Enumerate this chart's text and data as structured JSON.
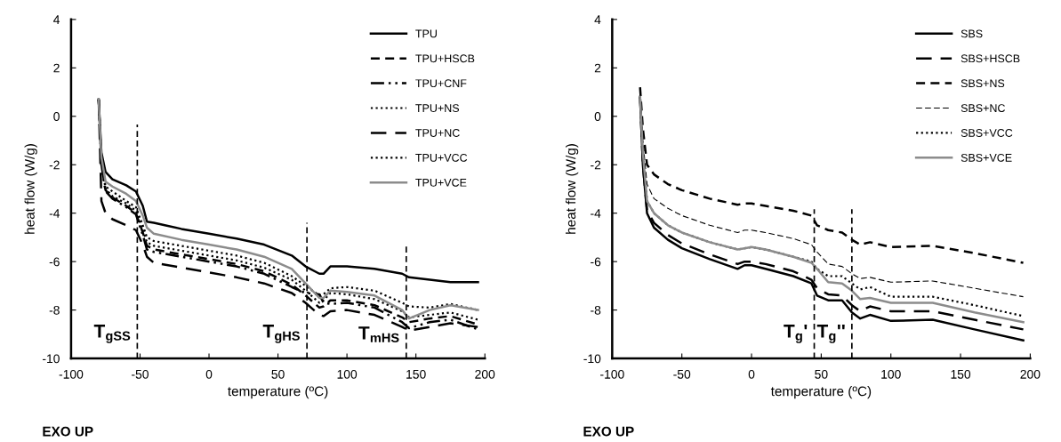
{
  "chart_data": [
    {
      "type": "line",
      "xlabel": "temperature (ºC)",
      "ylabel": "heat flow (W/g)",
      "xlim": [
        -100,
        200
      ],
      "ylim": [
        -10,
        4
      ],
      "xticks": [
        -100,
        -50,
        0,
        50,
        100,
        150,
        200
      ],
      "yticks": [
        -10,
        -8,
        -6,
        -4,
        -2,
        0,
        2,
        4
      ],
      "grid": false,
      "legend": "top right",
      "x": [
        -80,
        -78,
        -75,
        -70,
        -60,
        -53,
        -48,
        -45,
        -40,
        -20,
        0,
        20,
        40,
        60,
        70,
        80,
        83,
        88,
        100,
        120,
        140,
        145,
        160,
        175,
        195
      ],
      "series": [
        {
          "name": "TPU",
          "color": "#000000",
          "line_style": "solid",
          "values": [
            0.7,
            -1.5,
            -2.3,
            -2.6,
            -2.85,
            -3.1,
            -3.7,
            -4.35,
            -4.4,
            -4.65,
            -4.85,
            -5.05,
            -5.3,
            -5.75,
            -6.2,
            -6.5,
            -6.5,
            -6.2,
            -6.2,
            -6.3,
            -6.5,
            -6.65,
            -6.75,
            -6.85,
            -6.85
          ]
        },
        {
          "name": "TPU+HSCB",
          "color": "#000000",
          "line_style": "dashed",
          "values": [
            0.7,
            -2.0,
            -3.05,
            -3.35,
            -3.7,
            -4.0,
            -4.8,
            -5.35,
            -5.5,
            -5.7,
            -5.9,
            -6.1,
            -6.4,
            -6.95,
            -7.4,
            -7.9,
            -7.85,
            -7.6,
            -7.6,
            -7.8,
            -8.3,
            -8.5,
            -8.35,
            -8.25,
            -8.6
          ]
        },
        {
          "name": "TPU+CNF",
          "color": "#000000",
          "line_style": "dashdot",
          "values": [
            0.7,
            -2.0,
            -3.1,
            -3.4,
            -3.75,
            -4.05,
            -4.9,
            -5.5,
            -5.6,
            -5.8,
            -6.0,
            -6.2,
            -6.5,
            -7.05,
            -7.3,
            -7.35,
            -7.7,
            -7.75,
            -7.7,
            -7.9,
            -8.5,
            -8.75,
            -8.5,
            -8.4,
            -8.8
          ]
        },
        {
          "name": "TPU+NS",
          "color": "#000000",
          "line_style": "dotted",
          "values": [
            0.7,
            -1.8,
            -2.9,
            -3.1,
            -3.5,
            -3.75,
            -4.5,
            -5.0,
            -5.15,
            -5.35,
            -5.55,
            -5.75,
            -6.05,
            -6.6,
            -7.0,
            -7.4,
            -7.35,
            -7.1,
            -7.05,
            -7.2,
            -7.7,
            -7.85,
            -7.9,
            -7.75,
            -8.0
          ]
        },
        {
          "name": "TPU+NC",
          "color": "#000000",
          "line_style": "longdash",
          "values": [
            0.7,
            -3.5,
            -4.0,
            -4.25,
            -4.5,
            -4.7,
            -5.3,
            -5.8,
            -6.05,
            -6.25,
            -6.45,
            -6.65,
            -6.9,
            -7.3,
            -7.7,
            -8.2,
            -8.25,
            -8.05,
            -8.0,
            -8.2,
            -8.7,
            -8.85,
            -8.7,
            -8.55,
            -8.7
          ]
        },
        {
          "name": "TPU+VCC",
          "color": "#000000",
          "line_style": "dotted",
          "values": [
            0.7,
            -1.9,
            -3.0,
            -3.3,
            -3.6,
            -3.9,
            -4.7,
            -5.2,
            -5.35,
            -5.55,
            -5.75,
            -5.95,
            -6.25,
            -6.75,
            -7.2,
            -7.7,
            -7.6,
            -7.3,
            -7.35,
            -7.55,
            -8.05,
            -8.3,
            -8.2,
            -8.1,
            -8.4
          ]
        },
        {
          "name": "TPU+VCE",
          "color": "#8c8c8c",
          "line_style": "solid",
          "values": [
            0.7,
            -1.7,
            -2.7,
            -2.9,
            -3.2,
            -3.5,
            -4.1,
            -4.6,
            -4.85,
            -5.1,
            -5.3,
            -5.5,
            -5.8,
            -6.3,
            -6.9,
            -7.5,
            -7.5,
            -7.2,
            -7.25,
            -7.4,
            -8.0,
            -8.35,
            -8.0,
            -7.8,
            -8.0
          ]
        }
      ],
      "ref_lines": [
        {
          "axis": "x",
          "value": -52,
          "label": "T$_{gSS}$",
          "color": "#000000",
          "line_style": "dashed"
        },
        {
          "axis": "x",
          "value": 71,
          "label": "T$_{gHS}$",
          "color": "#000000",
          "line_style": "dashed"
        },
        {
          "axis": "x",
          "value": 143,
          "label": "T$_{mHS}$",
          "color": "#000000",
          "line_style": "dashed"
        }
      ],
      "annotations": [
        "EXO UP"
      ]
    },
    {
      "type": "line",
      "xlabel": "temperature (ºC)",
      "ylabel": "heat flow (W/g)",
      "xlim": [
        -100,
        200
      ],
      "ylim": [
        -10,
        4
      ],
      "xticks": [
        -100,
        -50,
        0,
        50,
        100,
        150,
        200
      ],
      "yticks": [
        -10,
        -8,
        -6,
        -4,
        -2,
        0,
        2,
        4
      ],
      "grid": false,
      "legend": "top right",
      "x": [
        -80,
        -78,
        -75,
        -70,
        -60,
        -50,
        -30,
        -10,
        -5,
        0,
        10,
        30,
        43,
        47,
        55,
        65,
        72,
        78,
        85,
        100,
        130,
        160,
        195
      ],
      "series": [
        {
          "name": "SBS",
          "color": "#000000",
          "line_style": "solid",
          "values": [
            0.8,
            -2.0,
            -4.0,
            -4.6,
            -5.1,
            -5.45,
            -5.9,
            -6.3,
            -6.15,
            -6.15,
            -6.3,
            -6.6,
            -6.9,
            -7.4,
            -7.6,
            -7.6,
            -8.1,
            -8.35,
            -8.2,
            -8.45,
            -8.4,
            -8.8,
            -9.25
          ]
        },
        {
          "name": "SBS+HSCB",
          "color": "#000000",
          "line_style": "longdash",
          "values": [
            0.8,
            -2.0,
            -3.9,
            -4.4,
            -4.9,
            -5.25,
            -5.7,
            -6.1,
            -6.0,
            -6.0,
            -6.1,
            -6.4,
            -6.75,
            -7.1,
            -7.35,
            -7.4,
            -7.8,
            -8.05,
            -7.85,
            -8.05,
            -8.05,
            -8.4,
            -8.8
          ]
        },
        {
          "name": "SBS+NS",
          "color": "#000000",
          "line_style": "dashed",
          "values": [
            1.2,
            -0.5,
            -2.0,
            -2.4,
            -2.8,
            -3.05,
            -3.4,
            -3.65,
            -3.6,
            -3.6,
            -3.7,
            -3.9,
            -4.1,
            -4.5,
            -4.7,
            -4.8,
            -5.1,
            -5.3,
            -5.2,
            -5.4,
            -5.35,
            -5.65,
            -6.05
          ]
        },
        {
          "name": "SBS+NC",
          "color": "#000000",
          "line_style": "thindash",
          "values": [
            1.0,
            -1.0,
            -2.8,
            -3.4,
            -3.8,
            -4.1,
            -4.5,
            -4.8,
            -4.7,
            -4.7,
            -4.8,
            -5.05,
            -5.3,
            -5.6,
            -6.1,
            -6.2,
            -6.5,
            -6.7,
            -6.65,
            -6.85,
            -6.8,
            -7.1,
            -7.45
          ]
        },
        {
          "name": "SBS+VCC",
          "color": "#000000",
          "line_style": "dotted",
          "values": [
            0.8,
            -1.5,
            -3.5,
            -4.0,
            -4.5,
            -4.8,
            -5.2,
            -5.5,
            -5.45,
            -5.4,
            -5.5,
            -5.8,
            -6.0,
            -6.3,
            -6.6,
            -6.6,
            -6.9,
            -7.15,
            -7.05,
            -7.45,
            -7.45,
            -7.8,
            -8.25
          ]
        },
        {
          "name": "SBS+VCE",
          "color": "#8c8c8c",
          "line_style": "solid",
          "values": [
            0.8,
            -1.5,
            -3.5,
            -4.0,
            -4.5,
            -4.8,
            -5.2,
            -5.5,
            -5.45,
            -5.4,
            -5.5,
            -5.8,
            -6.05,
            -6.3,
            -6.85,
            -6.9,
            -7.2,
            -7.55,
            -7.5,
            -7.7,
            -7.7,
            -8.1,
            -8.5
          ]
        }
      ],
      "ref_lines": [
        {
          "axis": "x",
          "value": 45,
          "label": "T$_{g}$'",
          "color": "#000000",
          "line_style": "dashed"
        },
        {
          "axis": "x",
          "value": 72,
          "label": "T$_{g}$''",
          "color": "#000000",
          "line_style": "dashed"
        }
      ],
      "annotations": [
        "EXO UP"
      ]
    }
  ]
}
